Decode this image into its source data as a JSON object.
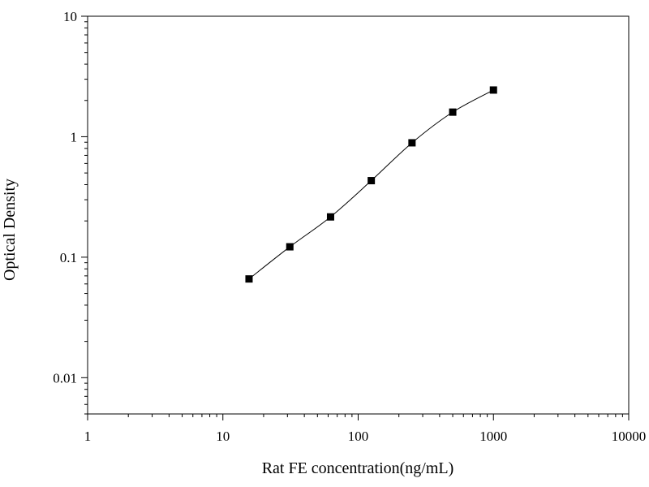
{
  "chart_data": {
    "type": "scatter",
    "title": "",
    "xlabel": "Rat FE concentration(ng/mL)",
    "ylabel": "Optical Density",
    "x_scale": "log",
    "y_scale": "log",
    "xlim": [
      1,
      10000
    ],
    "ylim": [
      0.005,
      10
    ],
    "x_ticks": [
      {
        "value": 1,
        "label": "1"
      },
      {
        "value": 10,
        "label": "10"
      },
      {
        "value": 100,
        "label": "100"
      },
      {
        "value": 1000,
        "label": "1000"
      },
      {
        "value": 10000,
        "label": "10000"
      }
    ],
    "y_ticks": [
      {
        "value": 0.01,
        "label": "0.01"
      },
      {
        "value": 0.1,
        "label": "0.1"
      },
      {
        "value": 1,
        "label": "1"
      },
      {
        "value": 10,
        "label": "10"
      }
    ],
    "grid": false,
    "legend": "none",
    "series": [
      {
        "marker": "square",
        "color": "#000000",
        "points": [
          {
            "x": 15.6,
            "y": 0.066
          },
          {
            "x": 31.25,
            "y": 0.122
          },
          {
            "x": 62.5,
            "y": 0.216
          },
          {
            "x": 125,
            "y": 0.432
          },
          {
            "x": 250,
            "y": 0.89
          },
          {
            "x": 500,
            "y": 1.6
          },
          {
            "x": 1000,
            "y": 2.44
          }
        ],
        "fit_curve": true
      }
    ]
  }
}
